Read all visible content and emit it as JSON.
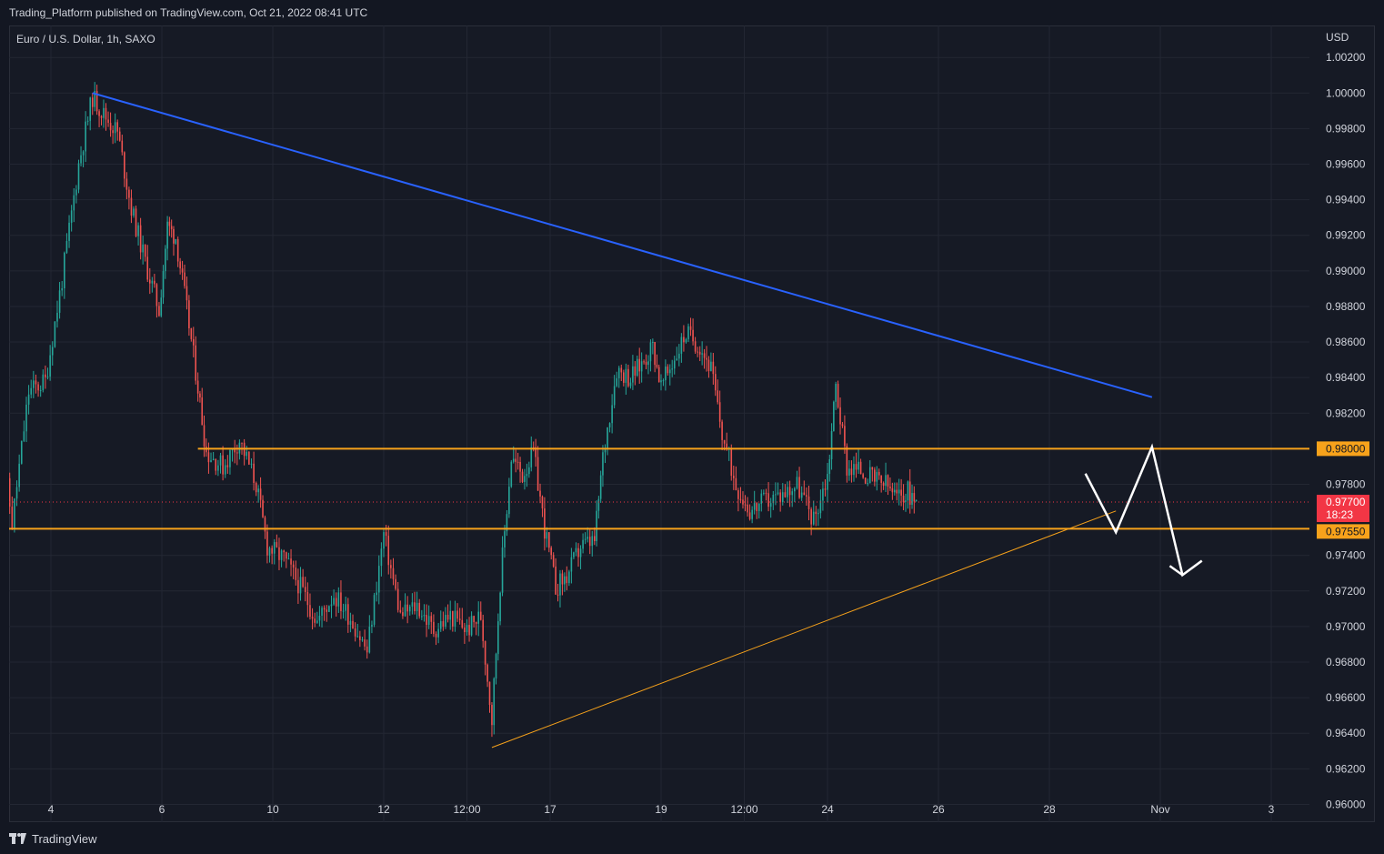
{
  "header": {
    "published_text": "Trading_Platform published on TradingView.com, Oct 21, 2022 08:41 UTC"
  },
  "footer": {
    "brand": "TradingView"
  },
  "colors": {
    "background": "#161a25",
    "grid": "#232733",
    "up": "#26a69a",
    "down": "#ef5350",
    "trendline_blue": "#2962ff",
    "level_orange": "#f7a21b",
    "current_price": "#f23645",
    "projection": "#ffffff"
  },
  "chart_data": {
    "type": "candlestick",
    "symbol": "Euro / U.S. Dollar, 1h, SAXO",
    "currency": "USD",
    "y_ticks": [
      "1.00200",
      "1.00000",
      "0.99800",
      "0.99600",
      "0.99400",
      "0.99200",
      "0.99000",
      "0.98800",
      "0.98600",
      "0.98400",
      "0.98200",
      "0.97800",
      "0.97400",
      "0.97200",
      "0.97000",
      "0.96800",
      "0.96600",
      "0.96400",
      "0.96200",
      "0.96000"
    ],
    "ylim": [
      0.959,
      1.0038
    ],
    "x_ticks": [
      "4",
      "6",
      "10",
      "12",
      "12:00",
      "17",
      "19",
      "12:00",
      "24",
      "26",
      "28",
      "Nov",
      "3"
    ],
    "price_tags": {
      "resistance": "0.98000",
      "current": "0.97700",
      "countdown": "18:23",
      "support": "0.97550"
    },
    "levels": {
      "resistance": 0.98,
      "support": 0.9755,
      "current": 0.977
    },
    "trendlines": [
      {
        "name": "descending resistance",
        "from": [
          4.75,
          1.0
        ],
        "to": [
          23.85,
          0.9829
        ]
      },
      {
        "name": "ascending support",
        "from": [
          11.95,
          0.9632
        ],
        "to": [
          23.2,
          0.9765
        ]
      }
    ],
    "projection_path": [
      [
        22.65,
        0.9786
      ],
      [
        23.2,
        0.9753
      ],
      [
        23.85,
        0.9801
      ],
      [
        24.4,
        0.9729
      ],
      [
        24.75,
        0.9737
      ]
    ],
    "price_path": [
      [
        3.0,
        0.9828
      ],
      [
        3.3,
        0.9758
      ],
      [
        3.6,
        0.9832
      ],
      [
        3.9,
        0.9838
      ],
      [
        4.2,
        0.9895
      ],
      [
        4.5,
        0.996
      ],
      [
        4.75,
        0.9998
      ],
      [
        4.95,
        0.9988
      ],
      [
        5.2,
        0.9978
      ],
      [
        5.45,
        0.9935
      ],
      [
        5.7,
        0.9905
      ],
      [
        5.95,
        0.9878
      ],
      [
        6.1,
        0.9925
      ],
      [
        6.25,
        0.9919
      ],
      [
        6.45,
        0.9878
      ],
      [
        6.65,
        0.9835
      ],
      [
        6.8,
        0.9798
      ],
      [
        7.1,
        0.979
      ],
      [
        7.4,
        0.9805
      ],
      [
        7.7,
        0.978
      ],
      [
        7.9,
        0.9745
      ],
      [
        8.2,
        0.9738
      ],
      [
        8.5,
        0.9722
      ],
      [
        8.8,
        0.9703
      ],
      [
        9.1,
        0.9718
      ],
      [
        9.4,
        0.9705
      ],
      [
        9.7,
        0.9686
      ],
      [
        10.0,
        0.9752
      ],
      [
        10.3,
        0.9706
      ],
      [
        10.6,
        0.9712
      ],
      [
        10.9,
        0.9698
      ],
      [
        11.2,
        0.9706
      ],
      [
        11.5,
        0.9698
      ],
      [
        11.75,
        0.9706
      ],
      [
        11.95,
        0.9648
      ],
      [
        12.1,
        0.9725
      ],
      [
        12.3,
        0.9795
      ],
      [
        12.5,
        0.9785
      ],
      [
        12.7,
        0.9798
      ],
      [
        12.9,
        0.9755
      ],
      [
        13.1,
        0.9722
      ],
      [
        13.3,
        0.9728
      ],
      [
        13.55,
        0.9745
      ],
      [
        13.8,
        0.9748
      ],
      [
        13.95,
        0.9795
      ],
      [
        14.2,
        0.9845
      ],
      [
        14.45,
        0.984
      ],
      [
        14.65,
        0.9848
      ],
      [
        14.85,
        0.9858
      ],
      [
        15.0,
        0.9835
      ],
      [
        15.2,
        0.9848
      ],
      [
        15.45,
        0.9865
      ],
      [
        15.7,
        0.9858
      ],
      [
        15.9,
        0.9845
      ],
      [
        16.1,
        0.9808
      ],
      [
        16.35,
        0.978
      ],
      [
        16.6,
        0.9765
      ],
      [
        16.85,
        0.977
      ],
      [
        17.15,
        0.9774
      ],
      [
        17.45,
        0.978
      ],
      [
        17.75,
        0.976
      ],
      [
        18.0,
        0.9785
      ],
      [
        18.15,
        0.9836
      ],
      [
        18.35,
        0.979
      ],
      [
        18.6,
        0.9788
      ],
      [
        18.85,
        0.9782
      ],
      [
        19.05,
        0.978
      ],
      [
        19.25,
        0.9772
      ],
      [
        19.45,
        0.9776
      ],
      [
        19.6,
        0.977
      ]
    ]
  }
}
